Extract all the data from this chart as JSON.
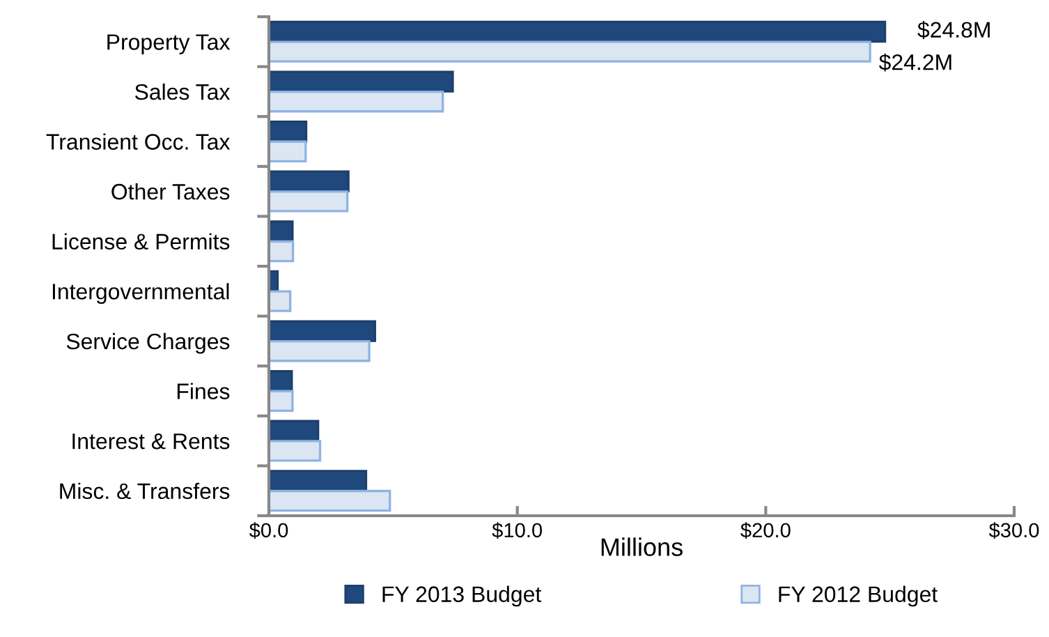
{
  "chart_data": {
    "type": "bar",
    "orientation": "horizontal",
    "xlabel": "Millions",
    "categories": [
      "Property Tax",
      "Sales Tax",
      "Transient Occ. Tax",
      "Other Taxes",
      "License & Permits",
      "Intergovernmental",
      "Service Charges",
      "Fines",
      "Interest & Rents",
      "Misc. & Transfers"
    ],
    "series": [
      {
        "name": "FY 2013 Budget",
        "color": "#1f497d",
        "values": [
          24.8,
          7.4,
          1.5,
          3.2,
          0.95,
          0.35,
          4.27,
          0.92,
          1.98,
          3.91
        ],
        "value_labels": [
          "$24.8M",
          null,
          null,
          null,
          null,
          null,
          null,
          null,
          null,
          null
        ]
      },
      {
        "name": "FY 2012 Budget",
        "color": "#dce6f2",
        "values": [
          24.2,
          7.0,
          1.48,
          3.16,
          0.97,
          0.86,
          4.04,
          0.95,
          2.06,
          4.87
        ],
        "value_labels": [
          "$24.2M",
          null,
          null,
          null,
          null,
          null,
          null,
          null,
          null,
          null
        ]
      }
    ],
    "xlim": [
      0,
      30
    ],
    "xticks": [
      {
        "value": 0,
        "label": "$0.0"
      },
      {
        "value": 10,
        "label": "$10.0"
      },
      {
        "value": 20,
        "label": "$20.0"
      },
      {
        "value": 30,
        "label": "$30.0"
      }
    ],
    "grid": false,
    "legend": "bottom"
  }
}
